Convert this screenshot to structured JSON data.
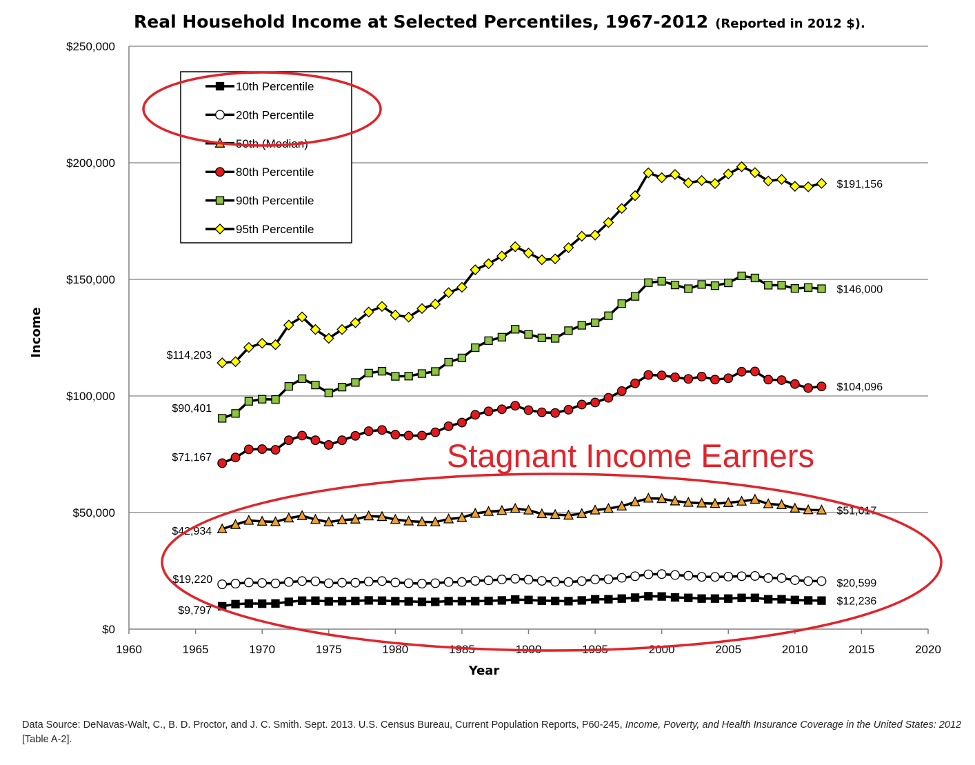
{
  "title": "Real Household Income at Selected Percentiles, 1967-2012",
  "subtitle": "(Reported in 2012 $).",
  "annotation": "Stagnant Income Earners",
  "source": {
    "prefix": "Data Source: DeNavas-Walt, C., B. D. Proctor, and J. C. Smith. Sept. 2013. U.S. Census Bureau, Current Population Reports, P60-245, ",
    "italic1": "Income, Poverty, and Health Insurance Coverage in the",
    "italic2": "United States: 2012",
    "suffix": "  [Table A-2]."
  },
  "colors": {
    "highlight": "#e0242b",
    "gridline": "#808080",
    "line": "#000000"
  },
  "chart_data": {
    "type": "line",
    "xlabel": "Year",
    "ylabel": "Income",
    "xlim": [
      1960,
      2020
    ],
    "ylim": [
      0,
      250000
    ],
    "x_ticks": [
      "1960",
      "1965",
      "1970",
      "1975",
      "1980",
      "1985",
      "1990",
      "1995",
      "2000",
      "2005",
      "2010",
      "2015",
      "2020"
    ],
    "y_ticks": [
      "$0",
      "$50,000",
      "$100,000",
      "$150,000",
      "$200,000",
      "$250,000"
    ],
    "grid": "horizontal",
    "legend_position": "top-left",
    "x": [
      1967,
      1968,
      1969,
      1970,
      1971,
      1972,
      1973,
      1974,
      1975,
      1976,
      1977,
      1978,
      1979,
      1980,
      1981,
      1982,
      1983,
      1984,
      1985,
      1986,
      1987,
      1988,
      1989,
      1990,
      1991,
      1992,
      1993,
      1994,
      1995,
      1996,
      1997,
      1998,
      1999,
      2000,
      2001,
      2002,
      2003,
      2004,
      2005,
      2006,
      2007,
      2008,
      2009,
      2010,
      2011,
      2012
    ],
    "series": [
      {
        "name": "10th Percentile",
        "marker": "square",
        "fill": "#000000",
        "start_label": "$9,797",
        "end_label": "$12,236",
        "values": [
          9797,
          10700,
          11000,
          10900,
          11000,
          11700,
          12200,
          12200,
          11900,
          12000,
          12100,
          12300,
          12200,
          12000,
          11900,
          11700,
          11700,
          12000,
          12000,
          12000,
          12100,
          12300,
          12700,
          12500,
          12200,
          12100,
          12000,
          12300,
          12800,
          12800,
          13100,
          13500,
          14100,
          14000,
          13600,
          13400,
          13100,
          13100,
          13100,
          13400,
          13400,
          12800,
          12800,
          12500,
          12300,
          12236
        ]
      },
      {
        "name": "20th Percentile",
        "marker": "circle",
        "fill": "#ffffff",
        "start_label": "$19,220",
        "end_label": "$20,599",
        "values": [
          19220,
          19500,
          20000,
          19800,
          19600,
          20200,
          20600,
          20500,
          19700,
          19900,
          19900,
          20400,
          20600,
          20000,
          19700,
          19500,
          19700,
          20200,
          20200,
          20700,
          20900,
          21300,
          21600,
          21200,
          20700,
          20300,
          20200,
          20600,
          21300,
          21400,
          22000,
          22700,
          23500,
          23600,
          23200,
          22900,
          22400,
          22400,
          22500,
          22700,
          22800,
          21900,
          21900,
          21000,
          20600,
          20599
        ]
      },
      {
        "name": "50th (Median)",
        "marker": "triangle",
        "fill": "#f0a030",
        "start_label": "$42,934",
        "end_label": "$51,017",
        "values": [
          42934,
          44800,
          46600,
          46200,
          46000,
          47600,
          48600,
          47000,
          45900,
          46800,
          47100,
          48500,
          48200,
          47000,
          46300,
          46000,
          45900,
          47200,
          47800,
          49600,
          50400,
          50800,
          51700,
          51000,
          49400,
          49100,
          48800,
          49500,
          51000,
          51700,
          52700,
          54500,
          56100,
          55900,
          54900,
          54300,
          54000,
          53800,
          54200,
          54800,
          55600,
          53700,
          53300,
          51800,
          51100,
          51017
        ]
      },
      {
        "name": "80th Percentile",
        "marker": "circle",
        "fill": "#e31a1c",
        "start_label": "$71,167",
        "end_label": "$104,096",
        "values": [
          71167,
          73600,
          77100,
          77200,
          76900,
          81000,
          83000,
          81000,
          79000,
          81000,
          82900,
          84900,
          85400,
          83400,
          83000,
          83000,
          84400,
          87000,
          88600,
          91900,
          93400,
          94300,
          95800,
          93900,
          93000,
          92700,
          94100,
          96300,
          97200,
          99200,
          102100,
          105400,
          109000,
          108800,
          108000,
          107300,
          108300,
          107000,
          107600,
          110400,
          110500,
          107000,
          106800,
          105100,
          103400,
          104096
        ]
      },
      {
        "name": "90th Percentile",
        "marker": "square",
        "fill": "#8dc63f",
        "start_label": "$90,401",
        "end_label": "$146,000",
        "values": [
          90401,
          92500,
          97700,
          98600,
          98500,
          104100,
          107400,
          104700,
          101300,
          103800,
          105800,
          109800,
          110600,
          108400,
          108500,
          109600,
          110500,
          114500,
          116300,
          120700,
          123700,
          125200,
          128600,
          126400,
          124900,
          124700,
          128000,
          130300,
          131400,
          134400,
          139600,
          142700,
          148600,
          149200,
          147600,
          146000,
          147800,
          147300,
          148500,
          151500,
          150600,
          147500,
          147500,
          146100,
          146500,
          146000
        ]
      },
      {
        "name": "95th Percentile",
        "marker": "diamond",
        "fill": "#ffff00",
        "start_label": "$114,203",
        "end_label": "$191,156",
        "values": [
          114203,
          114700,
          120800,
          122600,
          122000,
          130400,
          133900,
          128500,
          124700,
          128500,
          131400,
          136000,
          138400,
          134700,
          133800,
          137500,
          139400,
          144300,
          146600,
          154100,
          156700,
          160000,
          164000,
          161300,
          158400,
          158800,
          163600,
          168500,
          169000,
          174400,
          180400,
          185900,
          195700,
          193600,
          195000,
          191400,
          192400,
          191100,
          195200,
          198300,
          195800,
          192200,
          192900,
          189900,
          189700,
          191156
        ]
      }
    ]
  }
}
